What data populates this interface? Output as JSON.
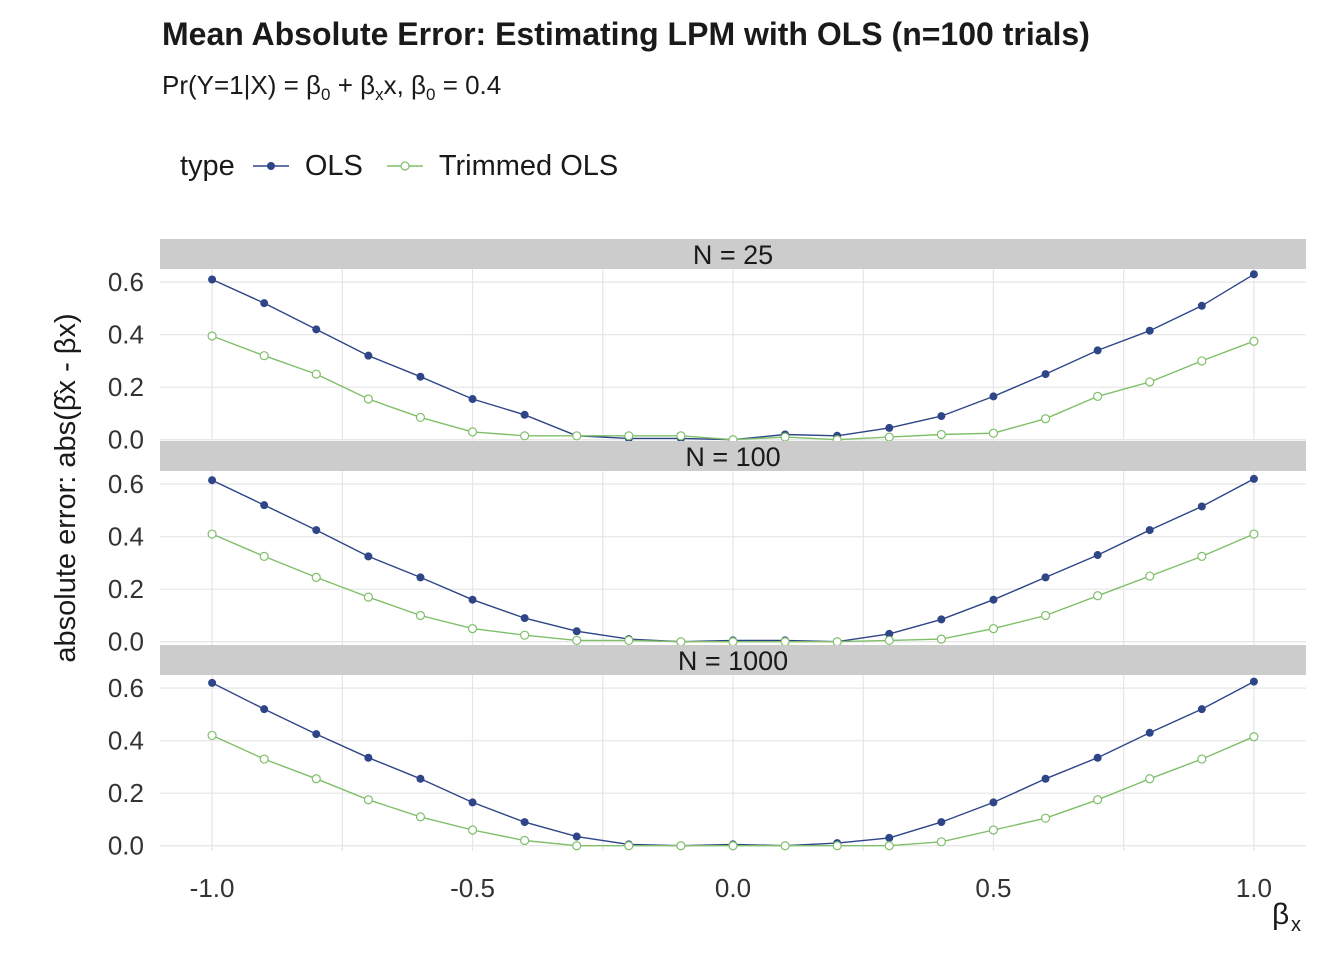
{
  "title": "Mean Absolute Error: Estimating LPM with OLS (n=100 trials)",
  "subtitle": {
    "prefix": "Pr(Y=1|X) = ",
    "beta": "β",
    "sub0": "0",
    "plus": " + ",
    "subx": "x",
    "mid": "x, ",
    "suffix": " = 0.4"
  },
  "legend": {
    "title": "type",
    "items": [
      "OLS",
      "Trimmed OLS"
    ]
  },
  "colors": {
    "ols": "#2e4587",
    "trimmed": "#7fbf6a",
    "strip": "#cccccc",
    "grid": "#e5e5e5"
  },
  "chart_data": {
    "type": "line",
    "xlabel": "βx",
    "ylabel": "absolute error: abs(β̂x - βx)",
    "x": [
      -1.0,
      -0.9,
      -0.8,
      -0.7,
      -0.6,
      -0.5,
      -0.4,
      -0.3,
      -0.2,
      -0.1,
      0.0,
      0.1,
      0.2,
      0.3,
      0.4,
      0.5,
      0.6,
      0.7,
      0.8,
      0.9,
      1.0
    ],
    "xlim": [
      -1.1,
      1.1
    ],
    "x_ticks": [
      -1.0,
      -0.5,
      0.0,
      0.5,
      1.0
    ],
    "x_tick_labels": [
      "-1.0",
      "-0.5",
      "0.0",
      "0.5",
      "1.0"
    ],
    "ylim": [
      -0.02,
      0.65
    ],
    "y_ticks": [
      0.0,
      0.2,
      0.4,
      0.6
    ],
    "y_tick_labels": [
      "0.0",
      "0.2",
      "0.4",
      "0.6"
    ],
    "grid": true,
    "legend_position": "top",
    "facets": [
      {
        "label": "N = 25",
        "series": [
          {
            "name": "OLS",
            "values": [
              0.61,
              0.52,
              0.42,
              0.32,
              0.24,
              0.155,
              0.095,
              0.015,
              0.005,
              0.005,
              0.0,
              0.02,
              0.015,
              0.045,
              0.09,
              0.165,
              0.25,
              0.34,
              0.415,
              0.51,
              0.63
            ]
          },
          {
            "name": "Trimmed OLS",
            "values": [
              0.395,
              0.32,
              0.25,
              0.155,
              0.085,
              0.03,
              0.015,
              0.015,
              0.015,
              0.015,
              0.0,
              0.01,
              0.0,
              0.01,
              0.02,
              0.025,
              0.08,
              0.165,
              0.22,
              0.3,
              0.375
            ]
          }
        ]
      },
      {
        "label": "N = 100",
        "series": [
          {
            "name": "OLS",
            "values": [
              0.615,
              0.52,
              0.425,
              0.325,
              0.245,
              0.16,
              0.09,
              0.04,
              0.01,
              0.0,
              0.005,
              0.005,
              0.0,
              0.03,
              0.085,
              0.16,
              0.245,
              0.33,
              0.425,
              0.515,
              0.62
            ]
          },
          {
            "name": "Trimmed OLS",
            "values": [
              0.41,
              0.325,
              0.245,
              0.17,
              0.1,
              0.05,
              0.025,
              0.005,
              0.005,
              0.0,
              0.0,
              0.0,
              0.0,
              0.005,
              0.01,
              0.05,
              0.1,
              0.175,
              0.25,
              0.325,
              0.41
            ]
          }
        ]
      },
      {
        "label": "N = 1000",
        "series": [
          {
            "name": "OLS",
            "values": [
              0.62,
              0.52,
              0.425,
              0.335,
              0.255,
              0.165,
              0.09,
              0.035,
              0.005,
              0.0,
              0.005,
              0.0,
              0.01,
              0.03,
              0.09,
              0.165,
              0.255,
              0.335,
              0.43,
              0.52,
              0.625
            ]
          },
          {
            "name": "Trimmed OLS",
            "values": [
              0.42,
              0.33,
              0.255,
              0.175,
              0.11,
              0.06,
              0.02,
              0.0,
              0.0,
              0.0,
              0.0,
              0.0,
              0.0,
              0.0,
              0.015,
              0.06,
              0.105,
              0.175,
              0.255,
              0.33,
              0.415
            ]
          }
        ]
      }
    ]
  }
}
